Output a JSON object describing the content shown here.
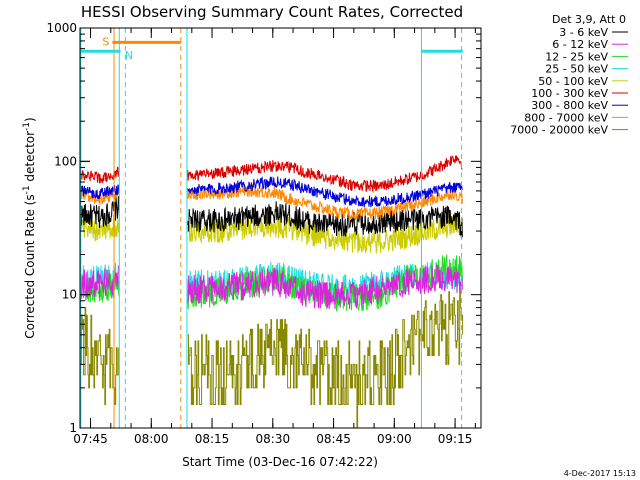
{
  "chart_data": {
    "type": "line",
    "title": "HESSI Observing Summary Count Rates, Corrected",
    "xlabel": "Start Time (03-Dec-16 07:42:22)",
    "ylabel_parts": [
      "Corrected Count Rate (s",
      "-1",
      " detector",
      "-1",
      ")"
    ],
    "yscale": "log",
    "ylim": [
      1,
      1000
    ],
    "y_ticks": [
      {
        "value": 1,
        "label": "1"
      },
      {
        "value": 10,
        "label": "10"
      },
      {
        "value": 100,
        "label": "100"
      },
      {
        "value": 1000,
        "label": "1000"
      }
    ],
    "xlim_minutes": [
      0,
      99
    ],
    "x_ticks": [
      {
        "minute": 2.6,
        "label": "07:45"
      },
      {
        "minute": 17.6,
        "label": "08:00"
      },
      {
        "minute": 32.6,
        "label": "08:15"
      },
      {
        "minute": 47.6,
        "label": "08:30"
      },
      {
        "minute": 62.6,
        "label": "08:45"
      },
      {
        "minute": 77.6,
        "label": "09:00"
      },
      {
        "minute": 92.6,
        "label": "09:15"
      }
    ],
    "legend_title": "Det 3,9, Att 0",
    "legend_placement": "right",
    "data_gap_minutes": [
      9.6,
      26.6
    ],
    "series": [
      {
        "name": "3 - 6 keV",
        "color": "#000000",
        "points": [
          [
            0,
            40
          ],
          [
            5,
            38
          ],
          [
            8,
            42
          ],
          [
            9.5,
            45
          ],
          [
            27,
            36
          ],
          [
            35,
            36
          ],
          [
            42,
            38
          ],
          [
            48,
            41
          ],
          [
            52,
            39
          ],
          [
            58,
            34
          ],
          [
            63,
            33
          ],
          [
            68,
            34
          ],
          [
            74,
            35
          ],
          [
            78,
            36
          ],
          [
            84,
            37
          ],
          [
            88,
            38
          ],
          [
            92,
            39
          ],
          [
            93.5,
            36
          ],
          [
            94.5,
            29
          ]
        ]
      },
      {
        "name": "6 - 12 keV",
        "color": "#dd22dd",
        "points": [
          [
            0,
            12
          ],
          [
            5,
            12
          ],
          [
            9.5,
            13
          ],
          [
            27,
            11
          ],
          [
            35,
            11
          ],
          [
            42,
            12
          ],
          [
            48,
            12.5
          ],
          [
            52,
            11
          ],
          [
            58,
            10
          ],
          [
            63,
            10
          ],
          [
            68,
            10
          ],
          [
            74,
            11
          ],
          [
            78,
            12
          ],
          [
            84,
            13
          ],
          [
            88,
            13
          ],
          [
            92,
            13
          ],
          [
            94.5,
            12
          ]
        ]
      },
      {
        "name": "12 - 25 keV",
        "color": "#22dd22",
        "points": [
          [
            0,
            11
          ],
          [
            5,
            10.5
          ],
          [
            9.5,
            12
          ],
          [
            27,
            10
          ],
          [
            35,
            10.5
          ],
          [
            42,
            12
          ],
          [
            48,
            13.5
          ],
          [
            52,
            12
          ],
          [
            58,
            10
          ],
          [
            63,
            9.5
          ],
          [
            68,
            9.5
          ],
          [
            74,
            10
          ],
          [
            78,
            12
          ],
          [
            84,
            14
          ],
          [
            88,
            15
          ],
          [
            92,
            16
          ],
          [
            94.5,
            15
          ]
        ]
      },
      {
        "name": "25 - 50 keV",
        "color": "#22dddd",
        "points": [
          [
            0,
            13
          ],
          [
            5,
            13
          ],
          [
            9.5,
            14
          ],
          [
            27,
            12
          ],
          [
            35,
            12
          ],
          [
            42,
            13.5
          ],
          [
            48,
            14
          ],
          [
            52,
            13
          ],
          [
            58,
            11.5
          ],
          [
            63,
            11
          ],
          [
            68,
            11
          ],
          [
            74,
            12
          ],
          [
            78,
            13
          ],
          [
            84,
            14
          ],
          [
            88,
            14
          ],
          [
            92,
            14
          ],
          [
            94.5,
            13
          ]
        ]
      },
      {
        "name": "50 - 100 keV",
        "color": "#cccc00",
        "points": [
          [
            0,
            33
          ],
          [
            5,
            30
          ],
          [
            9.5,
            33
          ],
          [
            27,
            30
          ],
          [
            35,
            30
          ],
          [
            42,
            32
          ],
          [
            48,
            33
          ],
          [
            52,
            31
          ],
          [
            58,
            28
          ],
          [
            63,
            26
          ],
          [
            68,
            25
          ],
          [
            74,
            25
          ],
          [
            78,
            26
          ],
          [
            84,
            29
          ],
          [
            88,
            31
          ],
          [
            92,
            33
          ],
          [
            93.5,
            35
          ],
          [
            94.5,
            33
          ]
        ]
      },
      {
        "name": "100 - 300 keV",
        "color": "#dd0000",
        "points": [
          [
            0,
            80
          ],
          [
            5,
            75
          ],
          [
            8,
            77
          ],
          [
            9.5,
            85
          ],
          [
            27,
            78
          ],
          [
            35,
            82
          ],
          [
            42,
            88
          ],
          [
            48,
            93
          ],
          [
            52,
            90
          ],
          [
            58,
            80
          ],
          [
            63,
            72
          ],
          [
            68,
            66
          ],
          [
            74,
            65
          ],
          [
            78,
            70
          ],
          [
            84,
            78
          ],
          [
            88,
            88
          ],
          [
            91,
            100
          ],
          [
            93,
            108
          ],
          [
            94.5,
            95
          ]
        ]
      },
      {
        "name": "300 - 800 keV",
        "color": "#0000dd",
        "points": [
          [
            0,
            60
          ],
          [
            5,
            57
          ],
          [
            9.5,
            62
          ],
          [
            27,
            60
          ],
          [
            35,
            63
          ],
          [
            42,
            66
          ],
          [
            48,
            70
          ],
          [
            52,
            67
          ],
          [
            58,
            60
          ],
          [
            63,
            54
          ],
          [
            68,
            50
          ],
          [
            74,
            50
          ],
          [
            78,
            52
          ],
          [
            84,
            56
          ],
          [
            88,
            60
          ],
          [
            92,
            64
          ],
          [
            94.5,
            63
          ]
        ]
      },
      {
        "name": "800 - 7000 keV",
        "color": "#ff8800",
        "points": [
          [
            0,
            56
          ],
          [
            5,
            52
          ],
          [
            9.5,
            58
          ],
          [
            27,
            56
          ],
          [
            35,
            58
          ],
          [
            42,
            60
          ],
          [
            48,
            58
          ],
          [
            52,
            52
          ],
          [
            58,
            46
          ],
          [
            63,
            42
          ],
          [
            68,
            40
          ],
          [
            74,
            41
          ],
          [
            78,
            44
          ],
          [
            84,
            48
          ],
          [
            88,
            53
          ],
          [
            92,
            58
          ],
          [
            94.5,
            53
          ]
        ]
      },
      {
        "name": "7000 - 20000 keV",
        "color": "#888800",
        "points": [
          [
            0,
            5
          ],
          [
            5,
            3
          ],
          [
            9.5,
            2.8
          ],
          [
            27,
            3
          ],
          [
            35,
            2.5
          ],
          [
            42,
            3
          ],
          [
            48,
            4
          ],
          [
            52,
            3.5
          ],
          [
            58,
            2.8
          ],
          [
            63,
            2.4
          ],
          [
            68,
            2.3
          ],
          [
            74,
            2.4
          ],
          [
            78,
            3
          ],
          [
            84,
            4.5
          ],
          [
            88,
            5.5
          ],
          [
            92,
            6
          ],
          [
            94.5,
            5.8
          ]
        ]
      }
    ],
    "markers": [
      {
        "label": "S",
        "color": "#ff8800",
        "start_minute": 8,
        "end_minute": 24.9,
        "value": 780
      },
      {
        "label": "N",
        "color": "#22dddd",
        "start_minute": 10.3,
        "end_minute": null,
        "value": 670
      },
      {
        "label": "",
        "color": "#22dddd",
        "start_minute": 0,
        "end_minute": 10,
        "value": 670
      },
      {
        "label": "",
        "color": "#22dddd",
        "start_minute": 84.3,
        "end_minute": 94.5,
        "value": 670
      }
    ],
    "vertical_lines": [
      {
        "minute": 0.2,
        "color": "#22dddd",
        "style": "solid"
      },
      {
        "minute": 8.4,
        "color": "#ff8800",
        "style": "solid"
      },
      {
        "minute": 9.7,
        "color": "#22dddd",
        "style": "solid"
      },
      {
        "minute": 11.2,
        "color": "#22dddd",
        "style": "dashed"
      },
      {
        "minute": 24.9,
        "color": "#ff8800",
        "style": "dashed"
      },
      {
        "minute": 26.4,
        "color": "#22dddd",
        "style": "solid"
      },
      {
        "minute": 84.3,
        "color": "#22dddd",
        "style": "solid"
      },
      {
        "minute": 94.2,
        "color": "#22dddd",
        "style": "dashed"
      }
    ]
  },
  "footer_timestamp": "4-Dec-2017 15:13"
}
